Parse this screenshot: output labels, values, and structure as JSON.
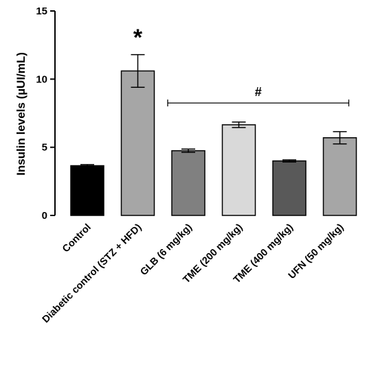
{
  "chart_data": {
    "type": "bar",
    "title": "",
    "xlabel": "",
    "ylabel": "Insulin levels (µUI/mL)",
    "ylim": [
      0,
      15
    ],
    "yticks": [
      0,
      5,
      10,
      15
    ],
    "grid": false,
    "categories": [
      "Control",
      "Diabetic control (STZ + HFD)",
      "GLB (6 mg/kg)",
      "TME (200 mg/kg)",
      "TME (400 mg/kg)",
      "UFN (50 mg/kg)"
    ],
    "values": [
      3.65,
      10.6,
      4.75,
      6.65,
      4.0,
      5.7
    ],
    "errors": [
      0.08,
      1.2,
      0.12,
      0.2,
      0.08,
      0.45
    ],
    "bar_colors": [
      "#000000",
      "#a6a6a6",
      "#808080",
      "#d9d9d9",
      "#595959",
      "#a6a6a6"
    ],
    "annotations": [
      {
        "text": "*",
        "category_index": 1,
        "y": 13.3
      },
      {
        "text": "#",
        "from_index": 2,
        "to_index": 5,
        "y": 8.25,
        "bracket": true
      }
    ]
  }
}
